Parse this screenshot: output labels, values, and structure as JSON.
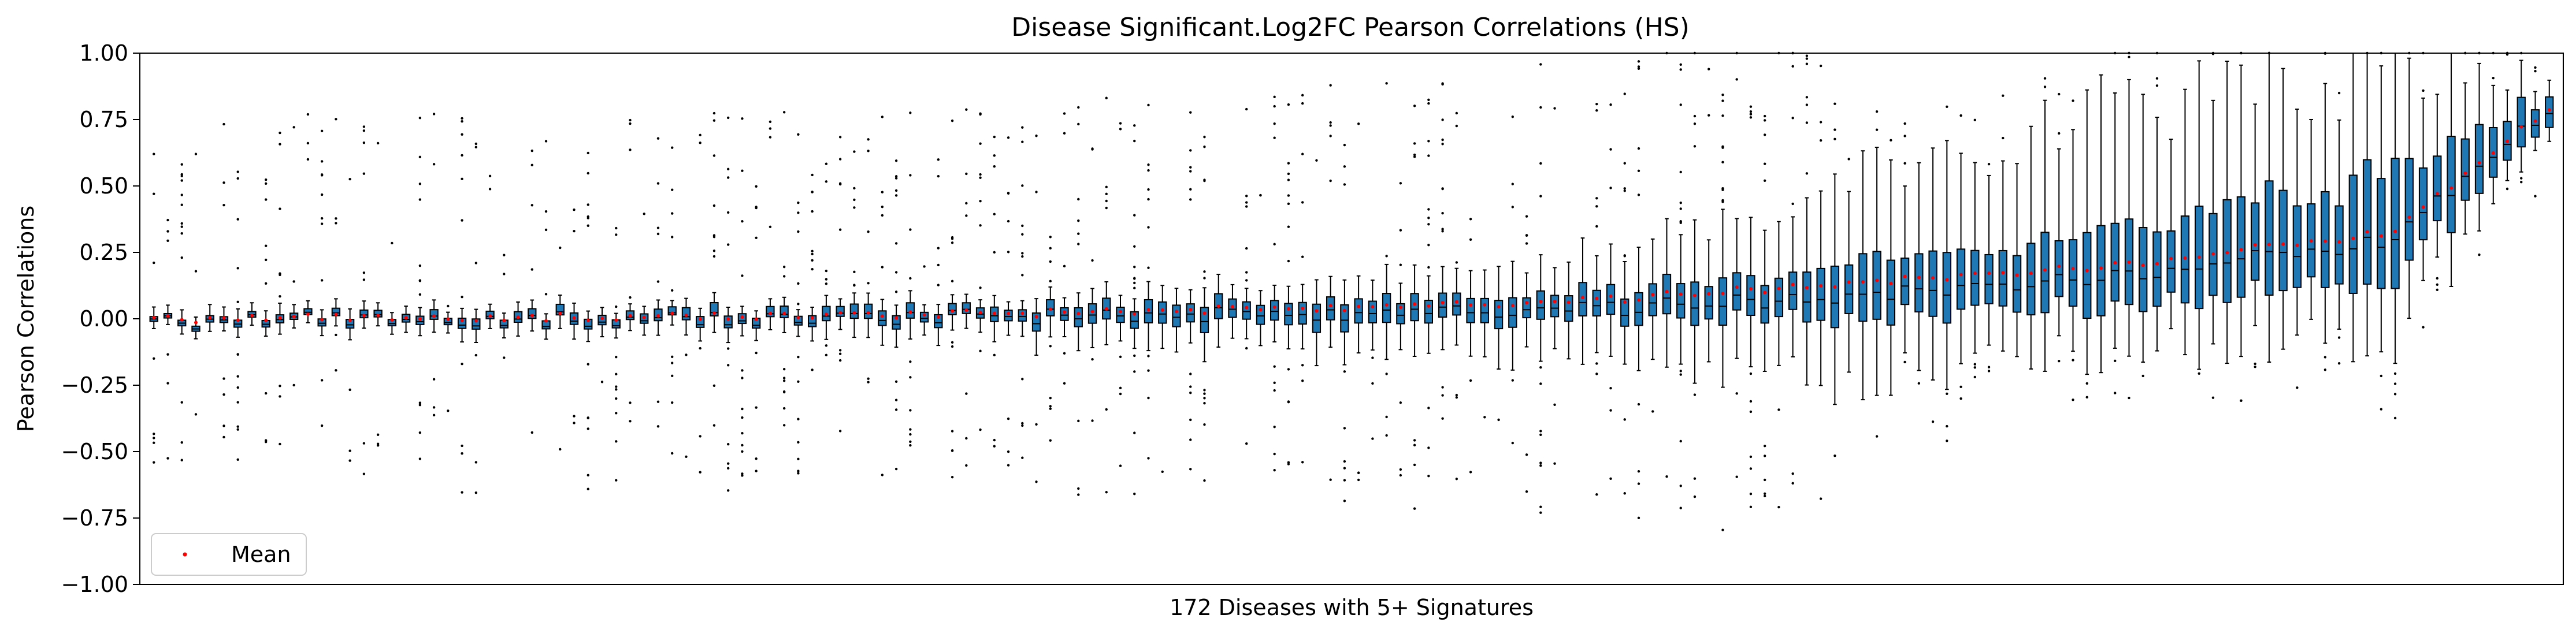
{
  "chart_data": {
    "type": "boxplot",
    "title": "Disease Significant.Log2FC Pearson Correlations (HS)",
    "xlabel": "172 Diseases with 5+ Signatures",
    "ylabel": "Pearson Correlations",
    "ylim": [
      -1.0,
      1.0
    ],
    "yticks": [
      -1.0,
      -0.75,
      -0.5,
      -0.25,
      0.0,
      0.25,
      0.5,
      0.75,
      1.0
    ],
    "ytick_labels": [
      "−1.00",
      "−0.75",
      "−0.50",
      "−0.25",
      "0.00",
      "0.25",
      "0.50",
      "0.75",
      "1.00"
    ],
    "n_boxes": 172,
    "box_color": "#1f77b4",
    "mean_color": "#ff0000",
    "grid": false,
    "legend": {
      "position": "lower-left",
      "entries": [
        "Mean"
      ]
    },
    "box_anchors": [
      {
        "index": 0,
        "q1": -0.02,
        "median": -0.01,
        "q3": 0.0,
        "whisker_low": -0.05,
        "whisker_high": 0.04,
        "mean": 0.0
      },
      {
        "index": 20,
        "q1": -0.01,
        "median": 0.0,
        "q3": 0.02,
        "whisker_low": -0.05,
        "whisker_high": 0.05,
        "mean": 0.005
      },
      {
        "index": 40,
        "q1": -0.01,
        "median": 0.0,
        "q3": 0.03,
        "whisker_low": -0.06,
        "whisker_high": 0.06,
        "mean": 0.01
      },
      {
        "index": 60,
        "q1": -0.01,
        "median": 0.01,
        "q3": 0.04,
        "whisker_low": -0.08,
        "whisker_high": 0.08,
        "mean": 0.02
      },
      {
        "index": 80,
        "q1": -0.02,
        "median": 0.02,
        "q3": 0.07,
        "whisker_low": -0.12,
        "whisker_high": 0.14,
        "mean": 0.04
      },
      {
        "index": 100,
        "q1": -0.01,
        "median": 0.03,
        "q3": 0.09,
        "whisker_low": -0.16,
        "whisker_high": 0.22,
        "mean": 0.06
      },
      {
        "index": 120,
        "q1": 0.0,
        "median": 0.08,
        "q3": 0.2,
        "whisker_low": -0.25,
        "whisker_high": 0.5,
        "mean": 0.13
      },
      {
        "index": 140,
        "q1": 0.05,
        "median": 0.16,
        "q3": 0.33,
        "whisker_low": -0.12,
        "whisker_high": 0.8,
        "mean": 0.2
      },
      {
        "index": 160,
        "q1": 0.15,
        "median": 0.3,
        "q3": 0.55,
        "whisker_low": -0.08,
        "whisker_high": 0.95,
        "mean": 0.33
      },
      {
        "index": 171,
        "q1": 0.75,
        "median": 0.8,
        "q3": 0.86,
        "whisker_low": 0.7,
        "whisker_high": 0.92,
        "mean": 0.8
      }
    ]
  }
}
